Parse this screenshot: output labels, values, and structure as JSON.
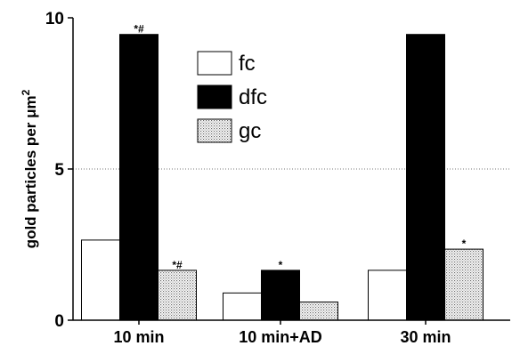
{
  "chart_data": {
    "type": "bar",
    "categories": [
      "10 min",
      "10 min+AD",
      "30 min"
    ],
    "series": [
      {
        "name": "fc",
        "values": [
          2.65,
          0.9,
          1.65
        ],
        "fill": "white"
      },
      {
        "name": "dfc",
        "values": [
          9.45,
          1.65,
          9.45
        ],
        "fill": "black"
      },
      {
        "name": "gc",
        "values": [
          1.65,
          0.6,
          2.35
        ],
        "fill": "dotted"
      }
    ],
    "annotations": [
      {
        "category": "10 min",
        "series": "dfc",
        "text": "*#"
      },
      {
        "category": "10 min",
        "series": "gc",
        "text": "*#"
      },
      {
        "category": "10 min+AD",
        "series": "dfc",
        "text": "*"
      },
      {
        "category": "30 min",
        "series": "gc",
        "text": "*"
      }
    ],
    "ylabel": "gold particles per μm²",
    "yticks": [
      0,
      5,
      10
    ],
    "ylim": [
      0,
      10
    ],
    "gridlines": [
      5
    ],
    "legend_position": "top-center"
  }
}
